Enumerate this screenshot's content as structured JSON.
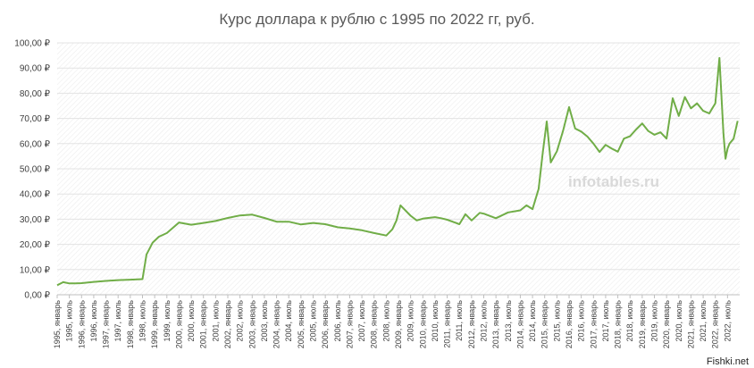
{
  "chart_data": {
    "type": "line",
    "title": "Курс доллара к рублю с 1995 по 2022 гг, руб.",
    "ylim": [
      0,
      100
    ],
    "y_ticks": [
      "0,00 ₽",
      "10,00 ₽",
      "20,00 ₽",
      "30,00 ₽",
      "40,00 ₽",
      "50,00 ₽",
      "60,00 ₽",
      "70,00 ₽",
      "80,00 ₽",
      "90,00 ₽",
      "100,00 ₽"
    ],
    "x_tick_labels": [
      "1995, январь",
      "1995, июль",
      "1996, январь",
      "1996, июль",
      "1997, январь",
      "1997, июль",
      "1998, январь",
      "1998, июль",
      "1999, январь",
      "1999, июль",
      "2000, январь",
      "2000, июль",
      "2001, январь",
      "2001, июль",
      "2002, январь",
      "2002, июль",
      "2003, январь",
      "2003, июль",
      "2004, январь",
      "2004, июль",
      "2005, январь",
      "2005, июль",
      "2006, январь",
      "2006, июль",
      "2007, январь",
      "2007, июль",
      "2008, январь",
      "2008, июль",
      "2009, январь",
      "2009, июль",
      "2010, январь",
      "2010, июль",
      "2011, январь",
      "2011, июль",
      "2012, январь",
      "2012, июль",
      "2013, январь",
      "2013, июль",
      "2014, январь",
      "2014, июль",
      "2015, январь",
      "2015, июль",
      "2016, январь",
      "2016, июль",
      "2017, январь",
      "2017, июль",
      "2018, январь",
      "2018, июль",
      "2019, январь",
      "2019, июль",
      "2020, январь",
      "2020, июль",
      "2021, январь",
      "2021, июль",
      "2022, январь",
      "2022, июль"
    ],
    "series": [
      {
        "color": "#70ad47",
        "points": [
          [
            "1995-01",
            3.8
          ],
          [
            "1995-04",
            5.0
          ],
          [
            "1995-07",
            4.5
          ],
          [
            "1995-10",
            4.5
          ],
          [
            "1996-01",
            4.6
          ],
          [
            "1996-07",
            5.1
          ],
          [
            "1997-01",
            5.5
          ],
          [
            "1997-07",
            5.8
          ],
          [
            "1998-01",
            6.0
          ],
          [
            "1998-07",
            6.2
          ],
          [
            "1998-09",
            16.0
          ],
          [
            "1998-12",
            20.7
          ],
          [
            "1999-03",
            23.0
          ],
          [
            "1999-07",
            24.5
          ],
          [
            "2000-01",
            28.7
          ],
          [
            "2000-07",
            27.8
          ],
          [
            "2001-01",
            28.5
          ],
          [
            "2001-07",
            29.3
          ],
          [
            "2002-01",
            30.5
          ],
          [
            "2002-07",
            31.5
          ],
          [
            "2003-01",
            31.8
          ],
          [
            "2003-07",
            30.5
          ],
          [
            "2004-01",
            29.0
          ],
          [
            "2004-07",
            29.0
          ],
          [
            "2005-01",
            27.9
          ],
          [
            "2005-07",
            28.5
          ],
          [
            "2006-01",
            28.0
          ],
          [
            "2006-07",
            26.8
          ],
          [
            "2007-01",
            26.3
          ],
          [
            "2007-07",
            25.6
          ],
          [
            "2008-01",
            24.5
          ],
          [
            "2008-07",
            23.5
          ],
          [
            "2008-10",
            26.0
          ],
          [
            "2008-12",
            29.4
          ],
          [
            "2009-02",
            35.5
          ],
          [
            "2009-07",
            31.4
          ],
          [
            "2009-10",
            29.5
          ],
          [
            "2010-01",
            30.2
          ],
          [
            "2010-07",
            30.8
          ],
          [
            "2010-10",
            30.4
          ],
          [
            "2011-01",
            29.8
          ],
          [
            "2011-07",
            28.0
          ],
          [
            "2011-10",
            32.0
          ],
          [
            "2012-01",
            29.5
          ],
          [
            "2012-05",
            32.5
          ],
          [
            "2012-07",
            32.2
          ],
          [
            "2013-01",
            30.4
          ],
          [
            "2013-07",
            32.7
          ],
          [
            "2014-01",
            33.5
          ],
          [
            "2014-04",
            35.5
          ],
          [
            "2014-07",
            34.0
          ],
          [
            "2014-10",
            42.0
          ],
          [
            "2014-12",
            56.0
          ],
          [
            "2015-02",
            68.8
          ],
          [
            "2015-04",
            52.5
          ],
          [
            "2015-07",
            57.0
          ],
          [
            "2015-10",
            65.0
          ],
          [
            "2016-01",
            74.5
          ],
          [
            "2016-04",
            66.0
          ],
          [
            "2016-07",
            64.8
          ],
          [
            "2016-10",
            62.8
          ],
          [
            "2017-01",
            60.0
          ],
          [
            "2017-04",
            56.7
          ],
          [
            "2017-07",
            59.5
          ],
          [
            "2017-10",
            58.0
          ],
          [
            "2018-01",
            56.8
          ],
          [
            "2018-04",
            62.0
          ],
          [
            "2018-07",
            62.9
          ],
          [
            "2018-10",
            65.6
          ],
          [
            "2019-01",
            68.0
          ],
          [
            "2019-04",
            65.0
          ],
          [
            "2019-07",
            63.5
          ],
          [
            "2019-10",
            64.5
          ],
          [
            "2020-01",
            62.0
          ],
          [
            "2020-04",
            78.0
          ],
          [
            "2020-07",
            71.0
          ],
          [
            "2020-10",
            78.5
          ],
          [
            "2021-01",
            74.0
          ],
          [
            "2021-04",
            76.0
          ],
          [
            "2021-07",
            73.0
          ],
          [
            "2021-10",
            72.0
          ],
          [
            "2022-01",
            76.0
          ],
          [
            "2022-03",
            94.0
          ],
          [
            "2022-05",
            64.0
          ],
          [
            "2022-06",
            54.0
          ],
          [
            "2022-07",
            58.0
          ],
          [
            "2022-08",
            60.0
          ],
          [
            "2022-09",
            61.0
          ],
          [
            "2022-10",
            62.0
          ],
          [
            "2022-12",
            69.0
          ]
        ]
      }
    ],
    "watermark": "infotables.ru",
    "corner_text": "Fishki.net"
  }
}
